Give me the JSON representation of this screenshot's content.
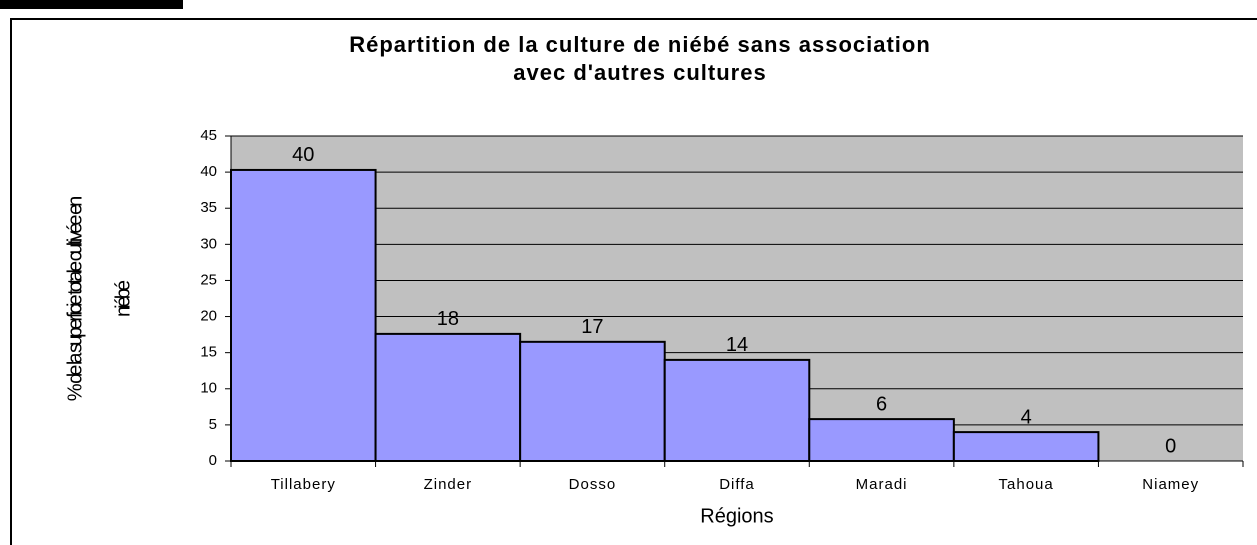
{
  "chart_data": {
    "type": "bar",
    "title": [
      "Répartition de la culture de niébé sans association",
      "avec d'autres cultures"
    ],
    "x_label": "Régions",
    "y_label": [
      "% de la superficie totale cultivée en",
      "niébé"
    ],
    "categories": [
      "Tillabery",
      "Zinder",
      "Dosso",
      "Diffa",
      "Maradi",
      "Tahoua",
      "Niamey"
    ],
    "values": [
      40.3,
      17.6,
      16.5,
      14,
      5.8,
      4,
      0
    ],
    "value_labels": [
      "40",
      "18",
      "17",
      "14",
      "6",
      "4",
      "0"
    ],
    "color": "#9999ff",
    "ylim": [
      0,
      45
    ],
    "yticks": [
      0,
      5,
      10,
      15,
      20,
      25,
      30,
      35,
      40,
      45
    ],
    "grid": true
  }
}
